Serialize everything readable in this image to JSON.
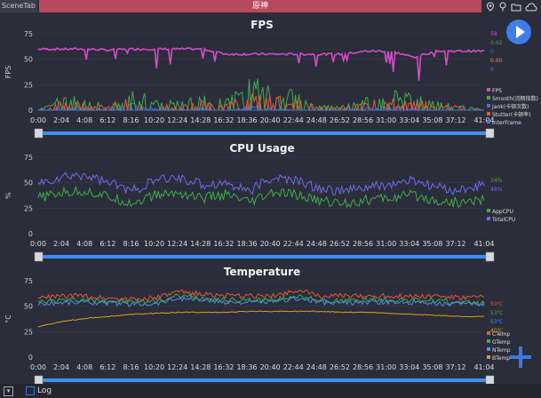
{
  "topbar": {
    "scene_tab": "SceneTab",
    "game_tab": "原神",
    "icons": [
      "location-icon",
      "pin-icon",
      "folder-icon",
      "cloud-icon"
    ]
  },
  "time_ticks": [
    "0:00",
    "2:04",
    "4:08",
    "6:12",
    "8:16",
    "10:20",
    "12:24",
    "14:28",
    "16:32",
    "18:36",
    "20:40",
    "22:44",
    "24:48",
    "26:52",
    "28:56",
    "31:00",
    "33:04",
    "35:08",
    "37:12",
    "41:04"
  ],
  "charts": [
    {
      "title": "FPS",
      "ylabel": "FPS",
      "yticks": [
        "75",
        "50",
        "25",
        "0"
      ],
      "legend": [
        "FPS",
        "Smooth(流畅指数)",
        "Jank(卡顿次数)",
        "Stutter(卡顿率)",
        "InterFrame"
      ],
      "legend_colors": [
        "#d04dc8",
        "#3fae49",
        "#4a6fe8",
        "#e05b3a",
        "#3a7be0"
      ],
      "values": [
        "58",
        "0.02",
        "0",
        "0.00",
        "0"
      ],
      "value_colors": [
        "#d04dc8",
        "#3fae49",
        "#4a6fe8",
        "#e0a03a",
        "#3a7be0"
      ]
    },
    {
      "title": "CPU Usage",
      "ylabel": "%",
      "yticks": [
        "75",
        "50",
        "25",
        "0"
      ],
      "legend": [
        "AppCPU",
        "TotalCPU"
      ],
      "legend_colors": [
        "#3fae49",
        "#6a6fe8"
      ],
      "values": [
        "34%",
        "48%"
      ],
      "value_colors": [
        "#3fae49",
        "#6a6fe8"
      ]
    },
    {
      "title": "Temperature",
      "ylabel": "°C",
      "yticks": [
        "75",
        "50",
        "25",
        "0"
      ],
      "legend": [
        "CTemp",
        "GTemp",
        "NTemp",
        "BTemp"
      ],
      "legend_colors": [
        "#e05b3a",
        "#3fae49",
        "#4a8fe8",
        "#e0a020"
      ],
      "values": [
        "59℃",
        "53℃",
        "53℃",
        "40℃"
      ],
      "value_colors": [
        "#e05b3a",
        "#3fae49",
        "#4a8fe8",
        "#e0a020"
      ]
    }
  ],
  "chart_data": [
    {
      "type": "line",
      "title": "FPS",
      "xlabel": "",
      "ylabel": "FPS",
      "ylim": [
        0,
        75
      ],
      "x": [
        "0:00",
        "2:04",
        "4:08",
        "6:12",
        "8:16",
        "10:20",
        "12:24",
        "14:28",
        "16:32",
        "18:36",
        "20:40",
        "22:44",
        "24:48",
        "26:52",
        "28:56",
        "31:00",
        "33:04",
        "35:08",
        "37:12",
        "41:04"
      ],
      "series": [
        {
          "name": "FPS",
          "values": [
            60,
            60,
            60,
            59,
            60,
            60,
            60,
            60,
            55,
            55,
            55,
            55,
            55,
            55,
            58,
            58,
            52,
            58,
            58,
            58
          ]
        },
        {
          "name": "Smooth(流畅指数)",
          "values": [
            0,
            8,
            5,
            3,
            10,
            6,
            4,
            7,
            5,
            15,
            12,
            8,
            3,
            2,
            6,
            9,
            7,
            4,
            3,
            0.02
          ]
        },
        {
          "name": "Jank(卡顿次数)",
          "values": [
            0,
            2,
            1,
            0,
            3,
            1,
            0,
            1,
            0,
            2,
            1,
            0,
            0,
            0,
            1,
            2,
            1,
            0,
            0,
            0
          ]
        },
        {
          "name": "Stutter(卡顿率)",
          "values": [
            0,
            5,
            3,
            2,
            6,
            4,
            2,
            5,
            3,
            8,
            7,
            5,
            2,
            1,
            4,
            6,
            5,
            3,
            2,
            0.0
          ]
        },
        {
          "name": "InterFrame",
          "values": [
            0,
            0,
            0,
            0,
            0,
            0,
            0,
            0,
            0,
            0,
            0,
            0,
            0,
            0,
            0,
            0,
            0,
            0,
            0,
            0
          ]
        }
      ]
    },
    {
      "type": "line",
      "title": "CPU Usage",
      "xlabel": "",
      "ylabel": "%",
      "ylim": [
        0,
        75
      ],
      "x": [
        "0:00",
        "2:04",
        "4:08",
        "6:12",
        "8:16",
        "10:20",
        "12:24",
        "14:28",
        "16:32",
        "18:36",
        "20:40",
        "22:44",
        "24:48",
        "26:52",
        "28:56",
        "31:00",
        "33:04",
        "35:08",
        "37:12",
        "41:04"
      ],
      "series": [
        {
          "name": "AppCPU",
          "values": [
            35,
            40,
            42,
            36,
            30,
            38,
            40,
            35,
            38,
            30,
            40,
            38,
            32,
            30,
            33,
            35,
            38,
            32,
            30,
            34
          ]
        },
        {
          "name": "TotalCPU",
          "values": [
            48,
            55,
            58,
            50,
            42,
            52,
            55,
            48,
            50,
            42,
            55,
            52,
            44,
            42,
            45,
            48,
            52,
            45,
            42,
            48
          ]
        }
      ]
    },
    {
      "type": "line",
      "title": "Temperature",
      "xlabel": "",
      "ylabel": "°C",
      "ylim": [
        0,
        75
      ],
      "x": [
        "0:00",
        "2:04",
        "4:08",
        "6:12",
        "8:16",
        "10:20",
        "12:24",
        "14:28",
        "16:32",
        "18:36",
        "20:40",
        "22:44",
        "24:48",
        "26:52",
        "28:56",
        "31:00",
        "33:04",
        "35:08",
        "37:12",
        "41:04"
      ],
      "series": [
        {
          "name": "CTemp",
          "values": [
            58,
            60,
            60,
            58,
            57,
            58,
            64,
            62,
            60,
            60,
            60,
            66,
            60,
            60,
            60,
            60,
            60,
            60,
            58,
            59
          ]
        },
        {
          "name": "GTemp",
          "values": [
            54,
            56,
            56,
            55,
            54,
            55,
            60,
            58,
            56,
            56,
            56,
            60,
            56,
            55,
            56,
            56,
            56,
            55,
            54,
            53
          ]
        },
        {
          "name": "NTemp",
          "values": [
            52,
            54,
            54,
            53,
            52,
            53,
            58,
            56,
            54,
            54,
            54,
            58,
            54,
            53,
            54,
            54,
            54,
            53,
            52,
            53
          ]
        },
        {
          "name": "BTemp",
          "values": [
            30,
            35,
            38,
            40,
            42,
            43,
            44,
            44,
            44,
            45,
            45,
            45,
            45,
            44,
            44,
            43,
            42,
            41,
            40,
            40
          ]
        }
      ]
    }
  ],
  "bottom": {
    "log_label": "Log"
  }
}
